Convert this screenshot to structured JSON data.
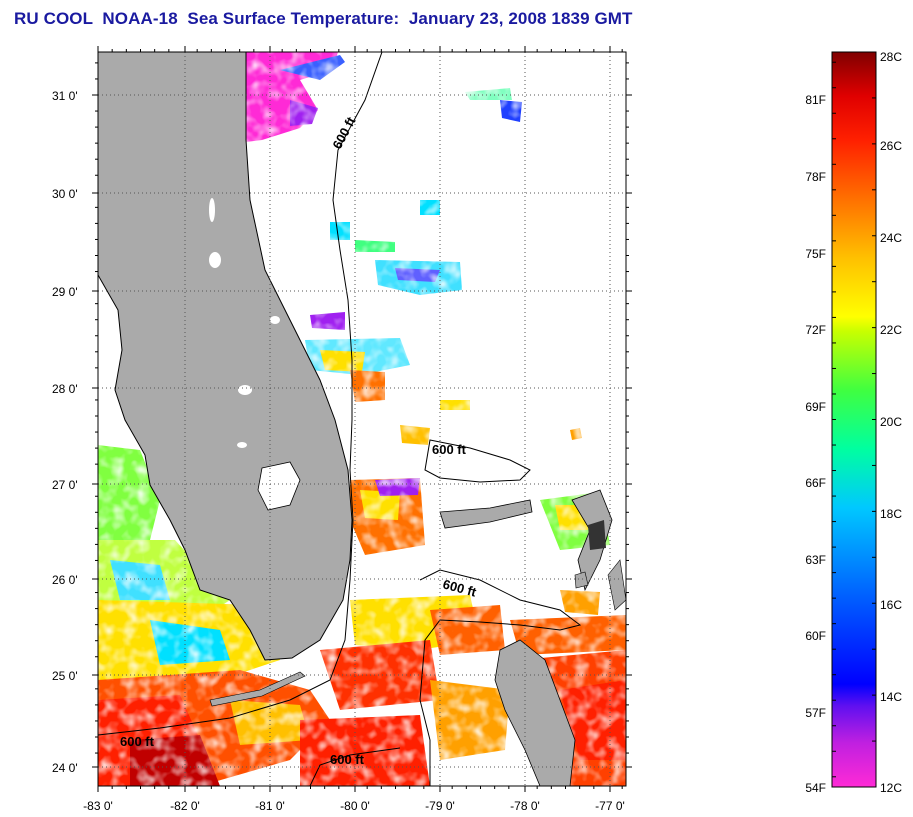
{
  "title": "RU COOL  NOAA-18  Sea Surface Temperature:  January 23, 2008 1839 GMT",
  "map": {
    "lon_range": [
      -83.0,
      -76.8
    ],
    "lat_range": [
      23.8,
      31.45
    ],
    "grid": true,
    "x_ticks": [
      "-83 0'",
      "-82 0'",
      "-81 0'",
      "-80 0'",
      "-79 0'",
      "-78 0'",
      "-77 0'"
    ],
    "y_ticks": [
      "31 0'",
      "30 0'",
      "29 0'",
      "28 0'",
      "27 0'",
      "26 0'",
      "25 0'",
      "24 0'"
    ],
    "contour_labels": [
      "600 ft",
      "600 ft",
      "600 ft",
      "600 ft",
      "600 ft"
    ],
    "land_color": "#aaaaaa",
    "no_data_color": "#ffffff"
  },
  "colorbar": {
    "celsius_labels": [
      "28C",
      "26C",
      "24C",
      "22C",
      "20C",
      "18C",
      "16C",
      "14C",
      "12C"
    ],
    "fahrenheit_labels": [
      "81F",
      "78F",
      "75F",
      "72F",
      "69F",
      "66F",
      "63F",
      "60F",
      "57F",
      "54F"
    ],
    "range_c": [
      12,
      28
    ],
    "colors": [
      "#ff2ad6",
      "#a020f0",
      "#0000ff",
      "#0080ff",
      "#00e0ff",
      "#00ff80",
      "#80ff00",
      "#ffff00",
      "#ffa000",
      "#ff5000",
      "#ff0000",
      "#8b0000"
    ]
  }
}
